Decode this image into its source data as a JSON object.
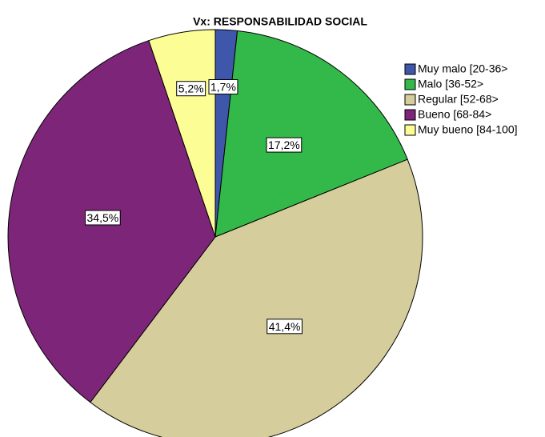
{
  "chart_data": {
    "type": "pie",
    "title": "Vx: RESPONSABILIDAD SOCIAL",
    "categories": [
      "Muy malo [20-36>",
      "Malo [36-52>",
      "Regular [52-68>",
      "Bueno [68-84>",
      "Muy bueno [84-100]"
    ],
    "values": [
      1.7,
      17.2,
      41.4,
      34.5,
      5.2
    ],
    "value_labels": [
      "1,7%",
      "17,2%",
      "41,4%",
      "34,5%",
      "5,2%"
    ],
    "colors": [
      "#3f57aa",
      "#33b84a",
      "#d5cd9b",
      "#7d2578",
      "#fdfd96"
    ]
  }
}
